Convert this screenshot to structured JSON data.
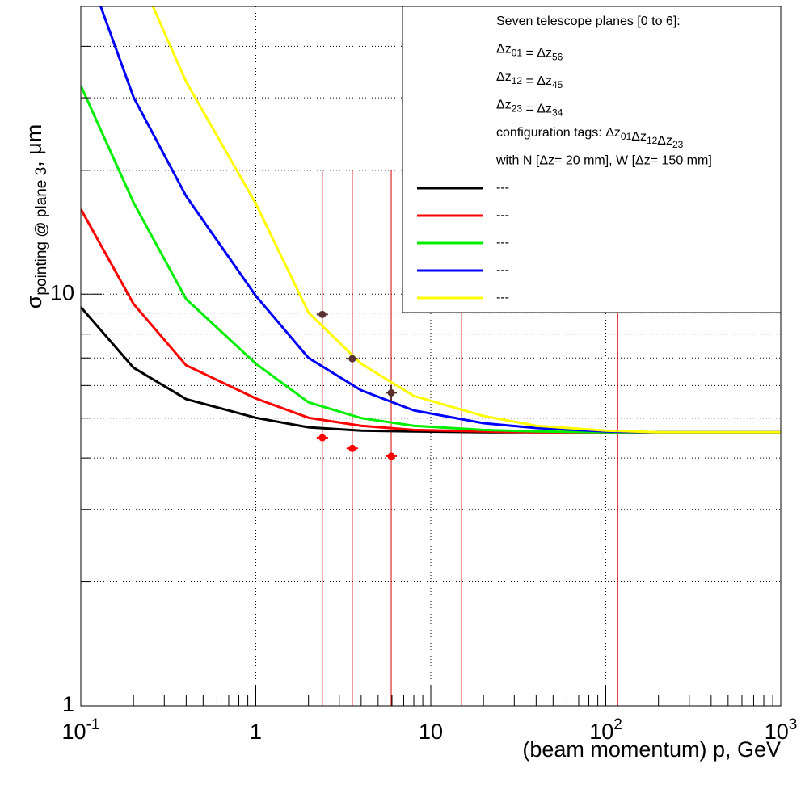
{
  "chart_data": {
    "type": "line",
    "x_label": "(beam momentum) p, GeV",
    "y_label": {
      "symbol": "σ",
      "sub": "pointing @ plane 3",
      "rest": ", μm"
    },
    "log_x": true,
    "log_y": true,
    "grid": true,
    "xlim": [
      0.1,
      1000
    ],
    "ylim": [
      1,
      50
    ],
    "xticks": [
      {
        "value": 0.1,
        "label": "10",
        "sup": "-1"
      },
      1,
      10,
      {
        "value": 100,
        "label": "10",
        "sup": "2"
      },
      {
        "value": 1000,
        "label": "10",
        "sup": "3"
      }
    ],
    "xminorticks": [
      0.2,
      0.3,
      0.4,
      0.5,
      0.6,
      0.7,
      0.8,
      0.9,
      2,
      3,
      4,
      5,
      6,
      7,
      8,
      9,
      20,
      30,
      40,
      50,
      60,
      70,
      80,
      90,
      200,
      300,
      400,
      500,
      600,
      700,
      800,
      900
    ],
    "yticks": [
      1,
      10
    ],
    "yminorticks": [
      2,
      3,
      4,
      5,
      6,
      7,
      8,
      9,
      20,
      30,
      40
    ],
    "x": [
      0.1,
      0.2,
      0.4,
      1,
      2,
      4,
      8,
      20,
      40,
      100,
      200,
      1000
    ],
    "series": [
      {
        "name": "---",
        "color": "#000000",
        "values": [
          9.3,
          6.63,
          5.56,
          5.01,
          4.75,
          4.66,
          4.64,
          4.62,
          4.62,
          4.62,
          4.62,
          4.62
        ]
      },
      {
        "name": "---",
        "color": "#ff0000",
        "values": [
          16.1,
          9.47,
          6.72,
          5.58,
          5.01,
          4.79,
          4.68,
          4.64,
          4.62,
          4.62,
          4.62,
          4.62
        ]
      },
      {
        "name": "---",
        "color": "#00ee00",
        "values": [
          32.1,
          16.7,
          9.73,
          6.78,
          5.46,
          5.0,
          4.79,
          4.68,
          4.64,
          4.62,
          4.62,
          4.62
        ]
      },
      {
        "name": "---",
        "color": "#0000ff",
        "values": [
          68,
          30.1,
          17.3,
          9.91,
          7.0,
          5.84,
          5.22,
          4.86,
          4.73,
          4.64,
          4.62,
          4.62
        ]
      },
      {
        "name": "---",
        "color": "#ffff00",
        "values": [
          null,
          64,
          32.8,
          16.6,
          9.02,
          6.78,
          5.66,
          5.06,
          4.79,
          4.66,
          4.62,
          4.62
        ]
      }
    ],
    "points": [
      {
        "color": "#ff0000",
        "x": [
          2.4,
          3.56,
          5.94
        ],
        "values": [
          4.48,
          4.22,
          4.04
        ]
      },
      {
        "color": "#5a3030",
        "x": [
          2.4,
          3.56,
          5.94
        ],
        "values": [
          8.93,
          6.97,
          5.76
        ],
        "errors": [
          null,
          null,
          0.25
        ]
      }
    ],
    "vlines": [
      2.4,
      3.56,
      5.94,
      15,
      117
    ],
    "vline_top": 20,
    "vline_color": "#dd0000",
    "legend": {
      "corner": "top-right",
      "header": [
        [
          "Seven telescope planes [0 to 6]:"
        ],
        [
          "Δz",
          {
            "sub": "01"
          },
          " = Δz",
          {
            "sub": "56"
          }
        ],
        [
          "Δz",
          {
            "sub": "12"
          },
          " = Δz",
          {
            "sub": "45"
          }
        ],
        [
          "Δz",
          {
            "sub": "23"
          },
          " = Δz",
          {
            "sub": "34"
          }
        ],
        [
          "configuration tags: Δz",
          {
            "sub": "01"
          },
          "Δz",
          {
            "sub": "12"
          },
          "Δz",
          {
            "sub": "23"
          }
        ],
        [
          "with N [Δz= 20 mm], W [Δz= 150 mm]"
        ]
      ]
    }
  }
}
